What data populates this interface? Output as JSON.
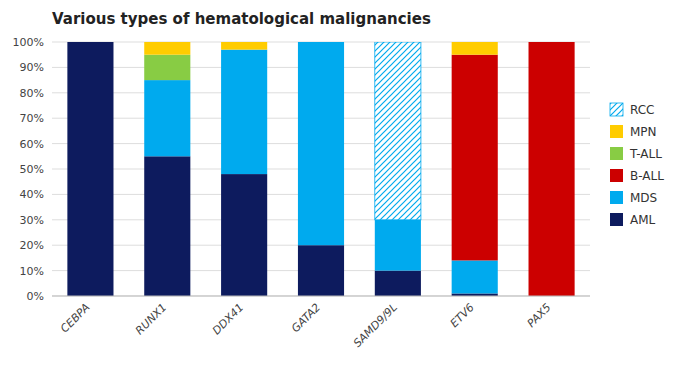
{
  "chart_data": {
    "type": "bar",
    "stacked": true,
    "title": "Various types of hematological malignancies",
    "categories": [
      "CEBPA",
      "RUNX1",
      "DDX41",
      "GATA2",
      "SAMD9/9L",
      "ETV6",
      "PAX5"
    ],
    "series": [
      {
        "name": "AML",
        "color": "#0d1b5e",
        "values": [
          100,
          55,
          48,
          20,
          10,
          1,
          0
        ]
      },
      {
        "name": "MDS",
        "color": "#00aaee",
        "values": [
          0,
          30,
          49,
          80,
          20,
          13,
          0
        ]
      },
      {
        "name": "B-ALL",
        "color": "#cc0000",
        "values": [
          0,
          0,
          0,
          0,
          0,
          81,
          100
        ]
      },
      {
        "name": "T-ALL",
        "color": "#88cc44",
        "values": [
          0,
          10,
          0,
          0,
          0,
          0,
          0
        ]
      },
      {
        "name": "MPN",
        "color": "#ffcc00",
        "values": [
          0,
          5,
          3,
          0,
          0,
          5,
          0
        ]
      },
      {
        "name": "RCC",
        "color": "#00aaee",
        "marker": "hatch",
        "values": [
          0,
          0,
          0,
          0,
          70,
          0,
          0
        ]
      }
    ],
    "ylim": [
      0,
      100
    ],
    "yticks": [
      {
        "value": 0,
        "label": "0%"
      },
      {
        "value": 10,
        "label": "10%"
      },
      {
        "value": 20,
        "label": "20%"
      },
      {
        "value": 30,
        "label": "30%"
      },
      {
        "value": 40,
        "label": "40%"
      },
      {
        "value": 50,
        "label": "50%"
      },
      {
        "value": 60,
        "label": "60%"
      },
      {
        "value": 70,
        "label": "70%"
      },
      {
        "value": 80,
        "label": "80%"
      },
      {
        "value": 90,
        "label": "90%"
      },
      {
        "value": 100,
        "label": "100%"
      }
    ],
    "grid": true,
    "legend": "right"
  }
}
